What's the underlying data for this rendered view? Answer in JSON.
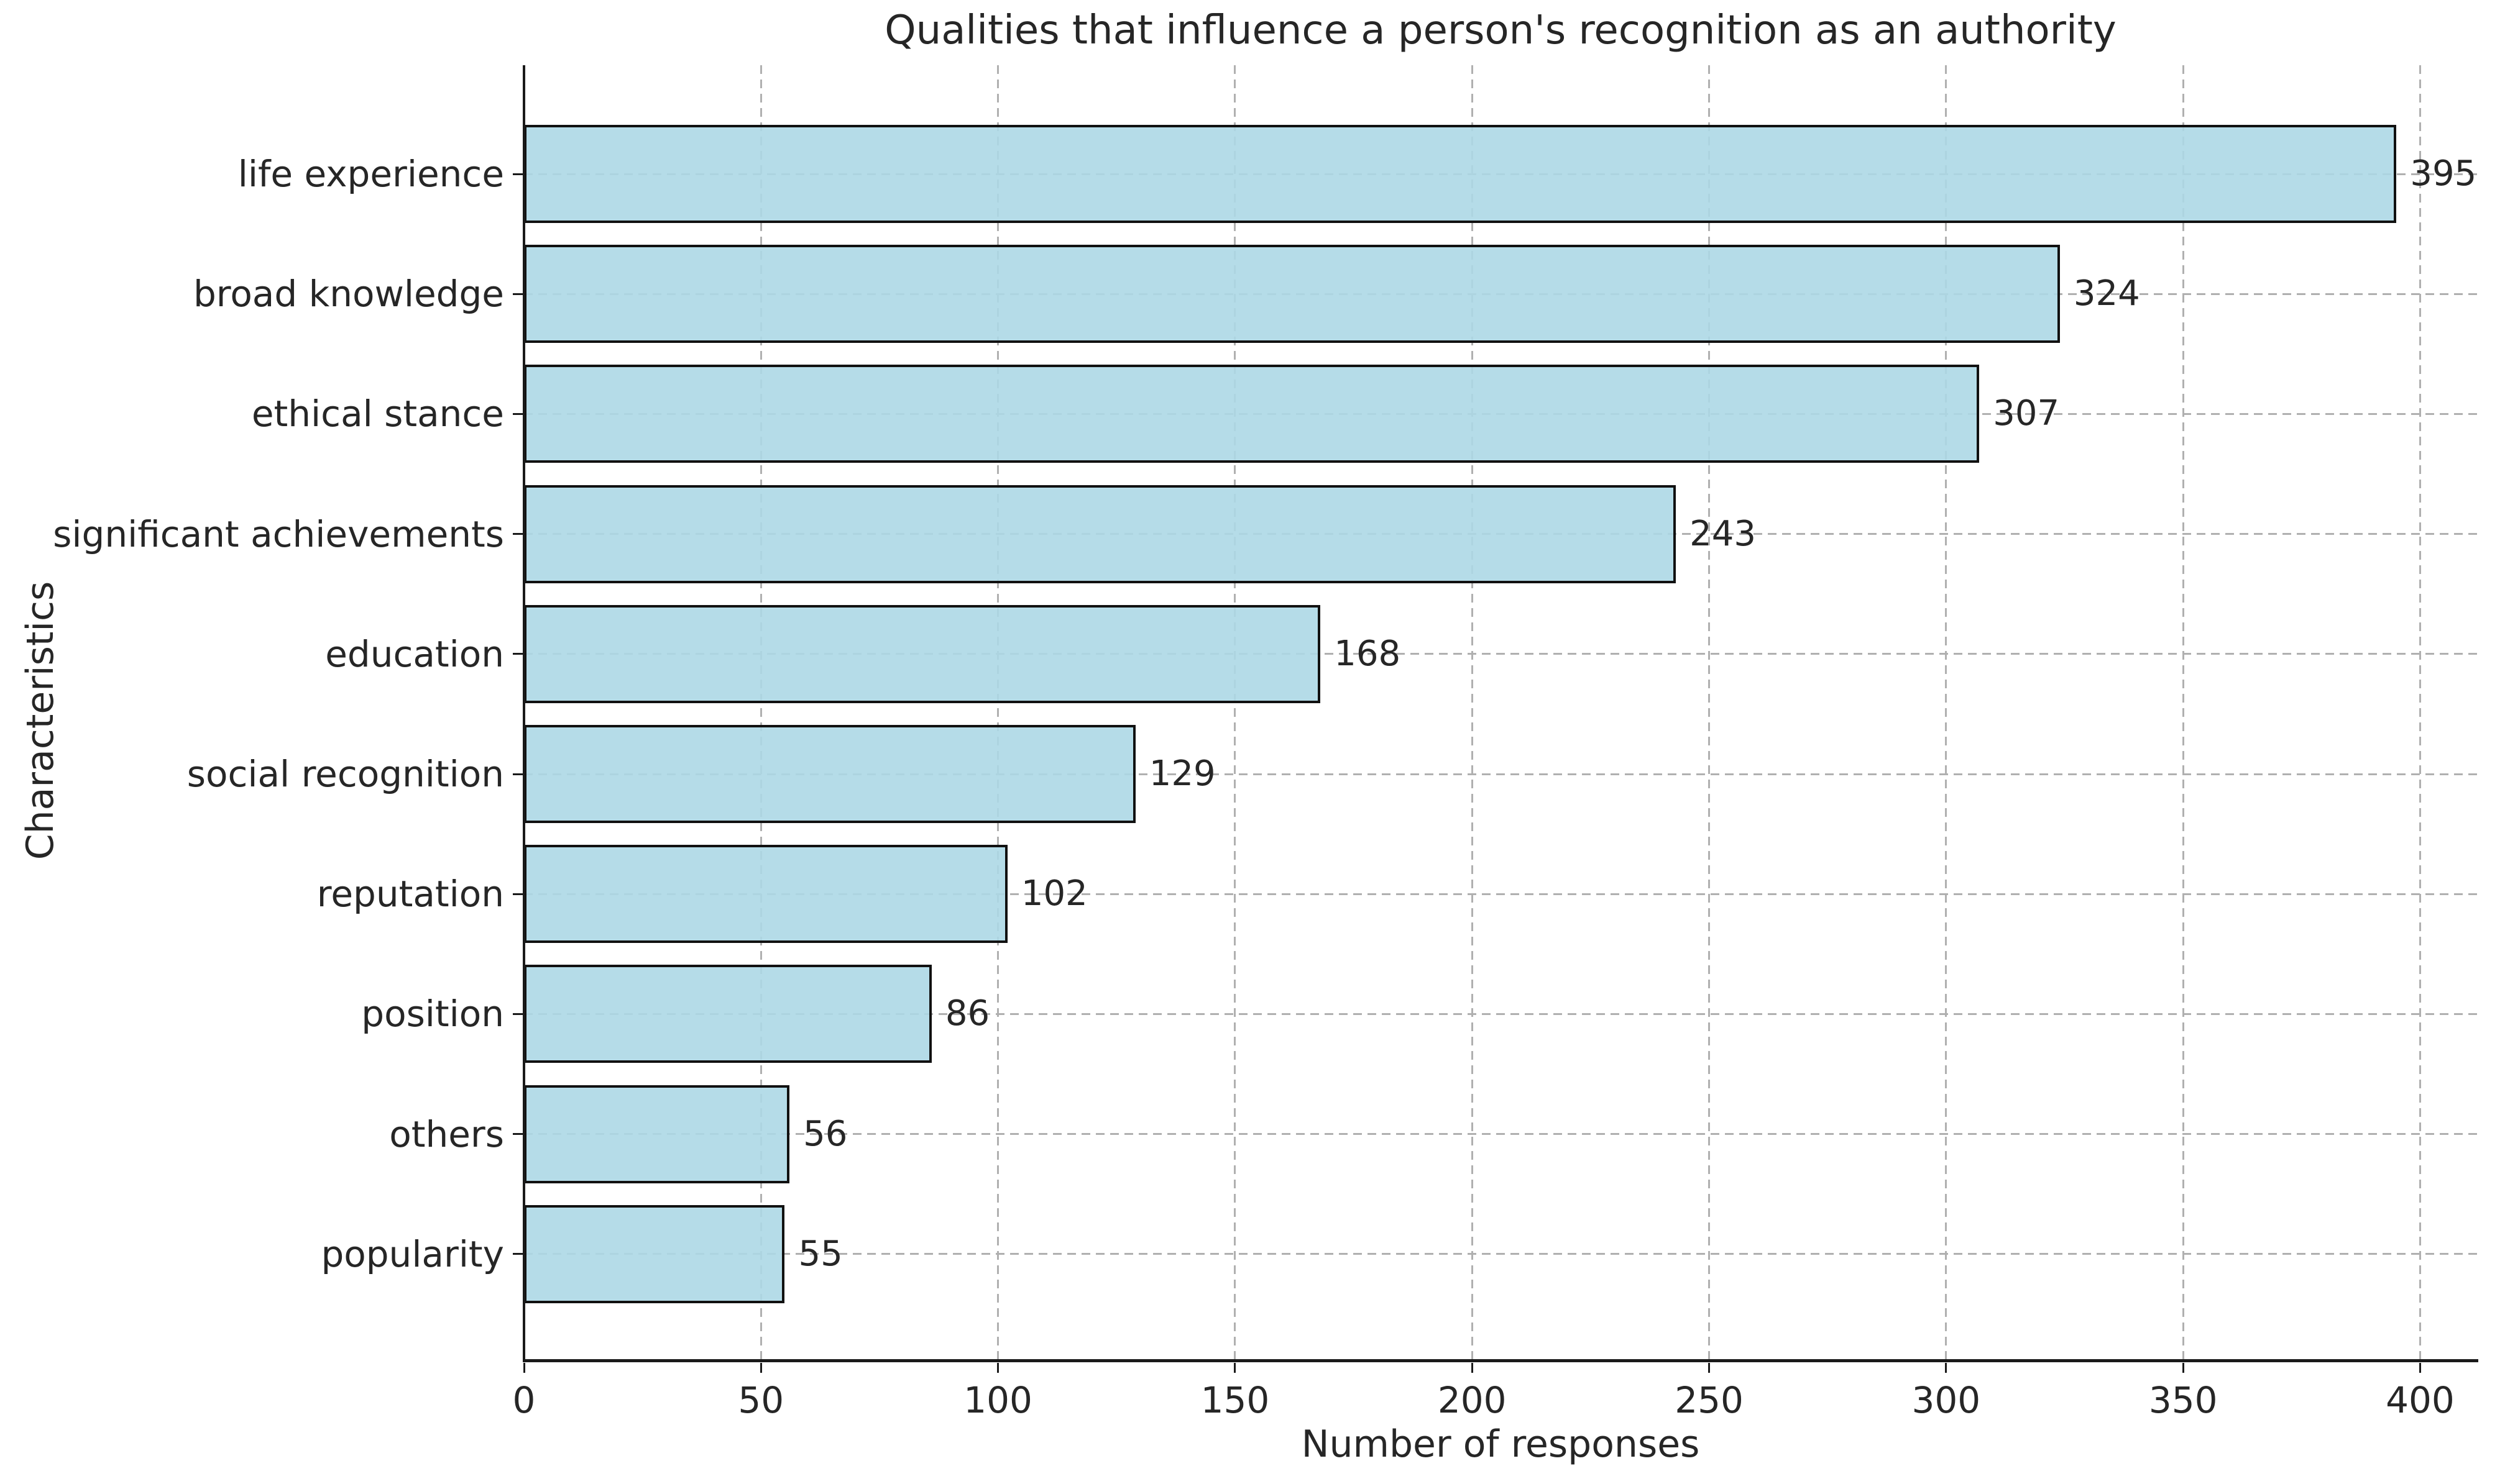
{
  "chart_data": {
    "type": "bar",
    "orientation": "horizontal",
    "title": "Qualities that influence a person's recognition as an authority",
    "xlabel": "Number of responses",
    "ylabel": "Characteristics",
    "categories": [
      "life experience",
      "broad knowledge",
      "ethical stance",
      "significant achievements",
      "education",
      "social recognition",
      "reputation",
      "position",
      "others",
      "popularity"
    ],
    "values": [
      395,
      324,
      307,
      243,
      168,
      129,
      102,
      86,
      56,
      55
    ],
    "xticks": [
      0,
      50,
      100,
      150,
      200,
      250,
      300,
      350,
      400
    ],
    "xlim": [
      0,
      412
    ],
    "grid": true,
    "legend": false,
    "bar_color": "#ADD8E6",
    "bar_fill_rgba": "rgba(173,216,230,0.9)",
    "bar_edge_color": "#111111",
    "grid_color": "#b0b0b0",
    "text_color": "#262626",
    "background_color": "#ffffff"
  }
}
